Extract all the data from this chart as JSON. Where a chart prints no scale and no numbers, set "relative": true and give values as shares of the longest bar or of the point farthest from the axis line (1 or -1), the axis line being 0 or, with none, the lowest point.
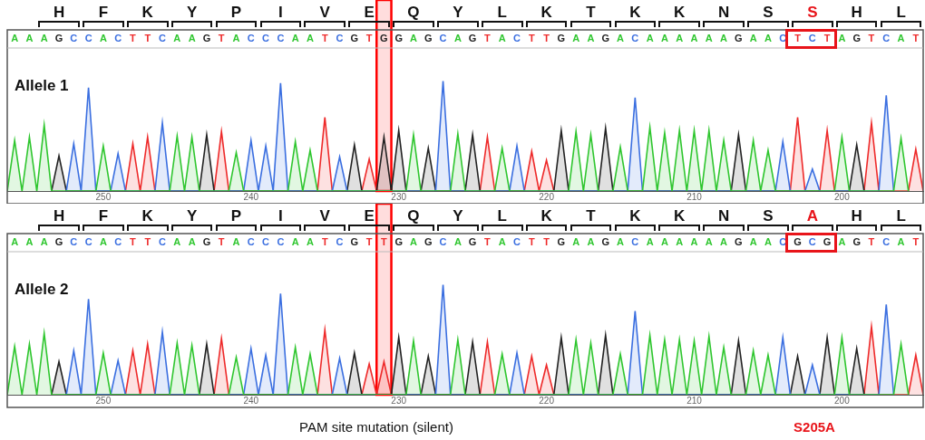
{
  "chart_data": [
    {
      "type": "area",
      "relative": true,
      "xlim": [
        256.5,
        194.5
      ],
      "xticks": [
        250,
        240,
        230,
        220,
        210,
        200
      ],
      "series": [
        {
          "color": "#2fc62f",
          "x": [
            256.5,
            256,
            255.5,
            255,
            254.5,
            254,
            253.5,
            250.5,
            250,
            249.5,
            245.5,
            245,
            244.5,
            244,
            243.5,
            241.5,
            241,
            240.5,
            237.5,
            237,
            236.5,
            236,
            235.5,
            229.5,
            229,
            228.5,
            226.5,
            226,
            225.5,
            223.5,
            223,
            222.5,
            218.5,
            218,
            217.5,
            217,
            216.5,
            215.5,
            215,
            214.5,
            213.5,
            213,
            212.5,
            212,
            211.5,
            211,
            210.5,
            210,
            209.5,
            209,
            208.5,
            208,
            207.5,
            206.5,
            206,
            205.5,
            205,
            204.5,
            200.5,
            200,
            199.5,
            196.5,
            196,
            195.5
          ],
          "values": [
            0,
            0.46,
            0,
            0.49,
            0,
            0.6,
            0,
            0,
            0.41,
            0,
            0,
            0.5,
            0,
            0.49,
            0,
            0,
            0.35,
            0,
            0,
            0.45,
            0,
            0.37,
            0,
            0,
            0.51,
            0,
            0,
            0.52,
            0,
            0,
            0.39,
            0,
            0,
            0.54,
            0,
            0.51,
            0,
            0,
            0.4,
            0,
            0,
            0.58,
            0,
            0.53,
            0,
            0.55,
            0,
            0.55,
            0,
            0.55,
            0,
            0.46,
            0,
            0,
            0.46,
            0,
            0.37,
            0,
            0,
            0.49,
            0,
            0,
            0.48,
            0
          ]
        },
        {
          "color": "#3b6fe0",
          "x": [
            252.5,
            252,
            251.5,
            251,
            250.5,
            249.5,
            249,
            248.5,
            246.5,
            246,
            245.5,
            240.5,
            240,
            239.5,
            239,
            238.5,
            238,
            237.5,
            234.5,
            234,
            233.5,
            227.5,
            227,
            226.5,
            222.5,
            222,
            221.5,
            214.5,
            214,
            213.5,
            204.5,
            204,
            203.5,
            202.5,
            202,
            201.5,
            197.5,
            197,
            196.5
          ],
          "values": [
            0,
            0.43,
            0,
            0.94,
            0,
            0,
            0.34,
            0,
            0,
            0.62,
            0,
            0,
            0.46,
            0,
            0.41,
            0,
            0.98,
            0,
            0,
            0.31,
            0,
            0,
            1,
            0,
            0,
            0.41,
            0,
            0,
            0.85,
            0,
            0,
            0.45,
            0,
            0,
            0.2,
            0,
            0,
            0.87,
            0
          ]
        },
        {
          "color": "#222222",
          "x": [
            253.5,
            253,
            252.5,
            243.5,
            243,
            242.5,
            233.5,
            233,
            232.5,
            231.5,
            231,
            230.5,
            230,
            229.5,
            228.5,
            228,
            227.5,
            225.5,
            225,
            224.5,
            219.5,
            219,
            218.5,
            216.5,
            216,
            215.5,
            207.5,
            207,
            206.5,
            199.5,
            199,
            198.5
          ],
          "values": [
            0,
            0.32,
            0,
            0,
            0.51,
            0,
            0,
            0.42,
            0,
            0,
            0.49,
            0,
            0.55,
            0,
            0,
            0.39,
            0,
            0,
            0.51,
            0,
            0,
            0.55,
            0,
            0,
            0.57,
            0,
            0,
            0.51,
            0,
            0,
            0.42,
            0
          ]
        },
        {
          "color": "#ee2a2a",
          "x": [
            248.5,
            248,
            247.5,
            247,
            246.5,
            242.5,
            242,
            241.5,
            235.5,
            235,
            234.5,
            232.5,
            232,
            231.5,
            224.5,
            224,
            223.5,
            221.5,
            221,
            220.5,
            220,
            219.5,
            203.5,
            203,
            202.5,
            201.5,
            201,
            200.5,
            198.5,
            198,
            197.5,
            195.5,
            195,
            194.5
          ],
          "values": [
            0,
            0.43,
            0,
            0.49,
            0,
            0,
            0.54,
            0,
            0,
            0.67,
            0,
            0,
            0.29,
            0,
            0,
            0.49,
            0,
            0,
            0.36,
            0,
            0.28,
            0,
            0,
            0.67,
            0,
            0,
            0.55,
            0,
            0,
            0.62,
            0,
            0,
            0.38,
            0
          ]
        }
      ],
      "bands": [
        {
          "axis": "x",
          "from": 231.5,
          "to": 230.5,
          "color": "#ff0000"
        }
      ],
      "annotations": [
        "Allele 1",
        "H F K Y P I V E Q Y L K T K K N S S H L",
        "A A A G C C A C T T C A A G T A C C C A A T C G T G G A G C A G T A C T T G A A G A C A A A A A A G A A C T C T A G T C A T"
      ]
    },
    {
      "type": "area",
      "relative": true,
      "xlim": [
        256.5,
        194.5
      ],
      "xticks": [
        250,
        240,
        230,
        220,
        210,
        200
      ],
      "series": [
        {
          "color": "#2fc62f",
          "x": [
            256.5,
            256,
            255.5,
            255,
            254.5,
            254,
            253.5,
            250.5,
            250,
            249.5,
            245.5,
            245,
            244.5,
            244,
            243.5,
            241.5,
            241,
            240.5,
            237.5,
            237,
            236.5,
            236,
            235.5,
            229.5,
            229,
            228.5,
            226.5,
            226,
            225.5,
            223.5,
            223,
            222.5,
            218.5,
            218,
            217.5,
            217,
            216.5,
            215.5,
            215,
            214.5,
            213.5,
            213,
            212.5,
            212,
            211.5,
            211,
            210.5,
            210,
            209.5,
            209,
            208.5,
            208,
            207.5,
            206.5,
            206,
            205.5,
            205,
            204.5,
            200.5,
            200,
            199.5,
            196.5,
            196,
            195.5
          ],
          "values": [
            0,
            0.44,
            0,
            0.46,
            0,
            0.56,
            0,
            0,
            0.38,
            0,
            0,
            0.47,
            0,
            0.45,
            0,
            0,
            0.34,
            0,
            0,
            0.43,
            0,
            0.37,
            0,
            0,
            0.49,
            0,
            0,
            0.5,
            0,
            0,
            0.37,
            0,
            0,
            0.5,
            0,
            0.47,
            0,
            0,
            0.37,
            0,
            0,
            0.54,
            0,
            0.5,
            0,
            0.5,
            0,
            0.49,
            0,
            0.53,
            0,
            0.43,
            0,
            0,
            0.4,
            0,
            0.36,
            0,
            0,
            0.52,
            0,
            0,
            0.46,
            0
          ]
        },
        {
          "color": "#3b6fe0",
          "x": [
            252.5,
            252,
            251.5,
            251,
            250.5,
            249.5,
            249,
            248.5,
            246.5,
            246,
            245.5,
            240.5,
            240,
            239.5,
            239,
            238.5,
            238,
            237.5,
            234.5,
            234,
            233.5,
            227.5,
            227,
            226.5,
            222.5,
            222,
            221.5,
            214.5,
            214,
            213.5,
            204.5,
            204,
            203.5,
            202.5,
            202,
            201.5,
            197.5,
            197,
            196.5
          ],
          "values": [
            0,
            0.4,
            0,
            0.87,
            0,
            0,
            0.31,
            0,
            0,
            0.57,
            0,
            0,
            0.42,
            0,
            0.36,
            0,
            0.92,
            0,
            0,
            0.33,
            0,
            0,
            1,
            0,
            0,
            0.38,
            0,
            0,
            0.76,
            0,
            0,
            0.52,
            0,
            0,
            0.27,
            0,
            0,
            0.82,
            0
          ]
        },
        {
          "color": "#222222",
          "x": [
            253.5,
            253,
            252.5,
            243.5,
            243,
            242.5,
            233.5,
            233,
            232.5,
            230.5,
            230,
            229.5,
            228.5,
            228,
            227.5,
            225.5,
            225,
            224.5,
            219.5,
            219,
            218.5,
            216.5,
            216,
            215.5,
            207.5,
            207,
            206.5,
            203.5,
            203,
            202.5,
            201.5,
            201,
            200.5,
            199.5,
            199,
            198.5
          ],
          "values": [
            0,
            0.3,
            0,
            0,
            0.46,
            0,
            0,
            0.38,
            0,
            0,
            0.52,
            0,
            0,
            0.35,
            0,
            0,
            0.48,
            0,
            0,
            0.52,
            0,
            0,
            0.54,
            0,
            0,
            0.49,
            0,
            0,
            0.35,
            0,
            0,
            0.52,
            0,
            0,
            0.42,
            0
          ]
        },
        {
          "color": "#ee2a2a",
          "x": [
            248.5,
            248,
            247.5,
            247,
            246.5,
            242.5,
            242,
            241.5,
            235.5,
            235,
            234.5,
            232.5,
            232,
            231.5,
            231,
            230.5,
            224.5,
            224,
            223.5,
            221.5,
            221,
            220.5,
            220,
            219.5,
            198.5,
            198,
            197.5,
            195.5,
            195,
            194.5
          ],
          "values": [
            0,
            0.4,
            0,
            0.46,
            0,
            0,
            0.51,
            0,
            0,
            0.59,
            0,
            0,
            0.28,
            0,
            0.3,
            0,
            0,
            0.48,
            0,
            0,
            0.35,
            0,
            0.27,
            0,
            0,
            0.62,
            0,
            0,
            0.36,
            0
          ]
        }
      ],
      "bands": [
        {
          "axis": "x",
          "from": 231.5,
          "to": 230.5,
          "color": "#ff0000"
        }
      ],
      "annotations": [
        "Allele 2",
        "H F K Y P I V E Q Y L K T K K N S A H L",
        "A A A G C C A C T T C A A G T A C C C A A T C G T T G A G C A G T A C T T G A A G A C A A A A A A G A A C G C G A G T C A T",
        "PAM site mutation (silent)",
        "S205A"
      ]
    }
  ]
}
